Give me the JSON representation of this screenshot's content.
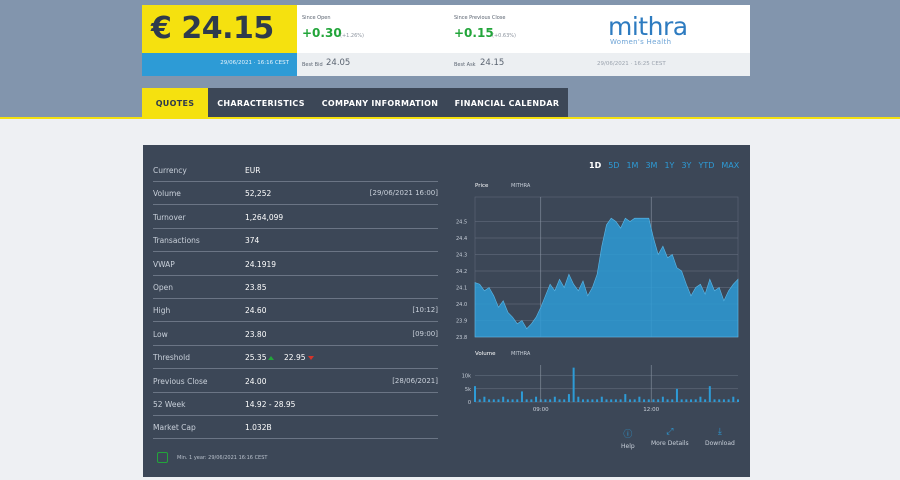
{
  "quote": {
    "price": "€ 24.15",
    "date": "29/06/2021 · 16:16 CEST",
    "since_open_label": "Since Open",
    "since_open_value": "+0.30",
    "since_open_pct": "(+1.26%)",
    "since_prev_label": "Since Previous Close",
    "since_prev_value": "+0.15",
    "since_prev_pct": "(+0.63%)",
    "best_bid_label": "Best Bid",
    "best_bid_value": "24.05",
    "best_ask_label": "Best Ask",
    "best_ask_value": "24.15",
    "logo_name": "mithra",
    "logo_tagline": "Women's Health",
    "logo_date": "29/06/2021 · 16:25 CEST"
  },
  "tabs": [
    {
      "label": "QUOTES",
      "active": true
    },
    {
      "label": "CHARACTERISTICS",
      "active": false
    },
    {
      "label": "COMPANY INFORMATION",
      "active": false
    },
    {
      "label": "FINANCIAL CALENDAR",
      "active": false
    }
  ],
  "stats": [
    {
      "label": "Currency",
      "value": "EUR",
      "extra": ""
    },
    {
      "label": "Volume",
      "value": "52,252",
      "extra": "[29/06/2021 16:00]"
    },
    {
      "label": "Turnover",
      "value": "1,264,099",
      "extra": ""
    },
    {
      "label": "Transactions",
      "value": "374",
      "extra": ""
    },
    {
      "label": "VWAP",
      "value": "24.1919",
      "extra": ""
    },
    {
      "label": "Open",
      "value": "23.85",
      "extra": ""
    },
    {
      "label": "High",
      "value": "24.60",
      "extra": "[10:12]"
    },
    {
      "label": "Low",
      "value": "23.80",
      "extra": "[09:00]"
    },
    {
      "label": "Threshold",
      "value": "25.35",
      "value2": "22.95",
      "extra": ""
    },
    {
      "label": "Previous Close",
      "value": "24.00",
      "extra": "[28/06/2021]"
    },
    {
      "label": "52 Week",
      "value": "14.92 - 28.95",
      "extra": ""
    },
    {
      "label": "Market Cap",
      "value": "1.032B",
      "extra": ""
    }
  ],
  "footnote": "Min. 1 year: 29/06/2021 16:16 CEST",
  "ranges": [
    "1D",
    "5D",
    "1M",
    "3M",
    "1Y",
    "3Y",
    "YTD",
    "MAX"
  ],
  "active_range": "1D",
  "actions": {
    "help": "Help",
    "more": "More Details",
    "download": "Download"
  },
  "icons": {
    "help": "help-icon",
    "more": "expand-icon",
    "download": "download-icon",
    "clock": "clock-icon"
  },
  "colors": {
    "accent_yellow": "#f5e10f",
    "accent_blue": "#2d9bd6",
    "panel": "#3c4757",
    "up": "#22a53a",
    "down": "#d6342a"
  },
  "chart_data": {
    "type": "area",
    "price_title": "Price",
    "volume_title": "Volume",
    "series_name": "MITHRA",
    "y_ticks": [
      "24.5",
      "24.4",
      "24.3",
      "24.2",
      "24.1",
      "24.0",
      "23.9",
      "23.8"
    ],
    "ylim": [
      23.8,
      24.6
    ],
    "x_ticks": [
      "09:00",
      "12:00"
    ],
    "volume_ticks": [
      "10k",
      "5k",
      "0"
    ],
    "price_values": [
      24.13,
      24.12,
      24.08,
      24.1,
      24.05,
      23.98,
      24.02,
      23.95,
      23.92,
      23.88,
      23.9,
      23.85,
      23.88,
      23.92,
      23.98,
      24.05,
      24.12,
      24.08,
      24.15,
      24.1,
      24.18,
      24.12,
      24.08,
      24.14,
      24.05,
      24.1,
      24.18,
      24.35,
      24.48,
      24.52,
      24.5,
      24.46,
      24.52,
      24.5,
      24.52,
      24.52,
      24.52,
      24.52,
      24.4,
      24.3,
      24.35,
      24.28,
      24.3,
      24.22,
      24.2,
      24.12,
      24.05,
      24.1,
      24.12,
      24.06,
      24.15,
      24.08,
      24.1,
      24.02,
      24.08,
      24.12,
      24.15
    ],
    "volume_values": [
      6,
      1,
      2,
      1,
      1,
      1,
      2,
      1,
      1,
      1,
      4,
      1,
      1,
      2,
      1,
      1,
      1,
      2,
      1,
      1,
      3,
      13,
      2,
      1,
      1,
      1,
      1,
      2,
      1,
      1,
      1,
      1,
      3,
      1,
      1,
      2,
      1,
      1,
      1,
      1,
      2,
      1,
      1,
      5,
      1,
      1,
      1,
      1,
      2,
      1,
      6,
      1,
      1,
      1,
      1,
      2,
      1
    ]
  }
}
